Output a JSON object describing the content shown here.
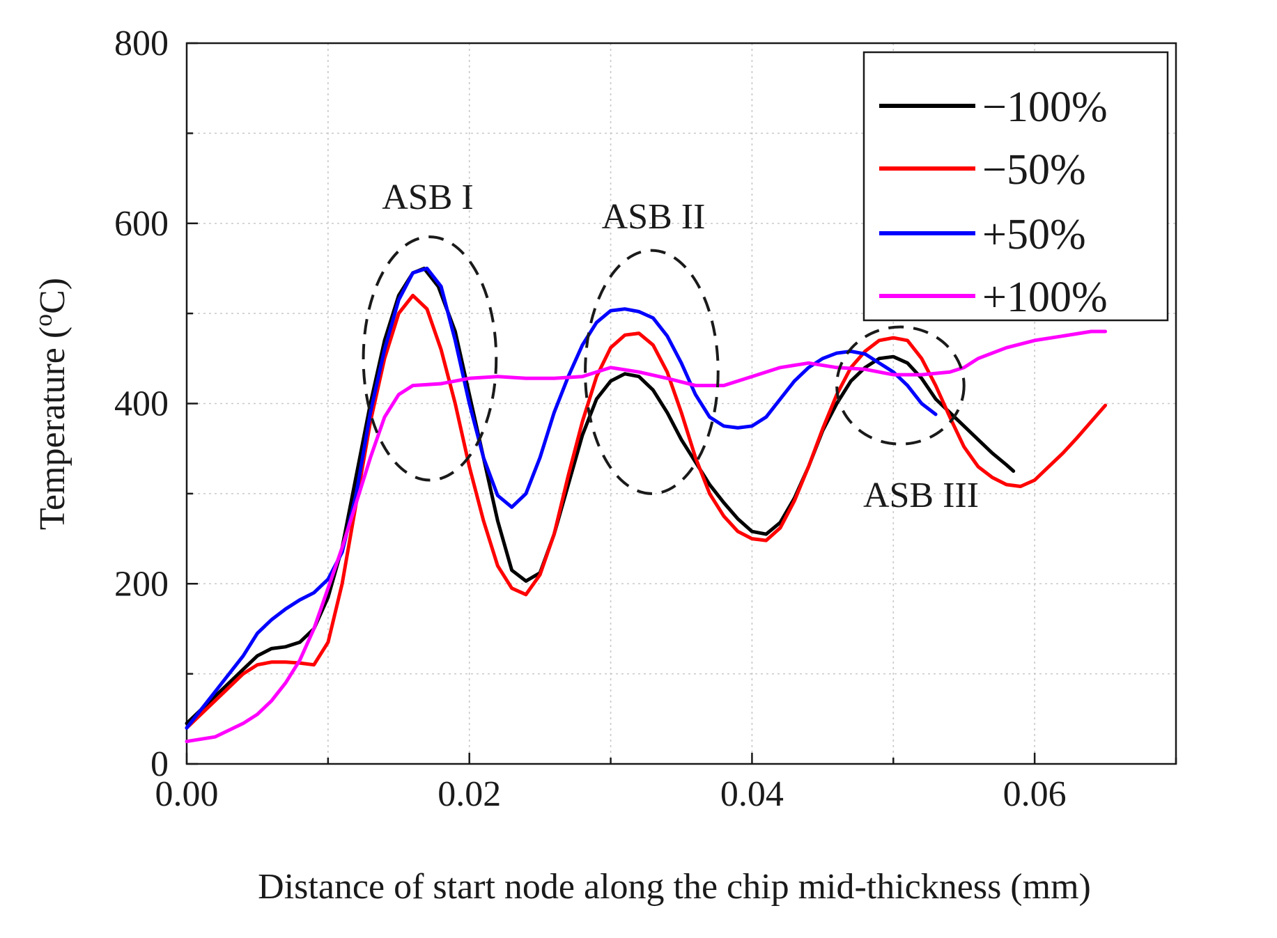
{
  "chart_data": {
    "type": "line",
    "title": "",
    "xlabel": "Distance of start node along the chip mid-thickness (mm)",
    "ylabel": "Temperature (",
    "ylabel_sup": "o",
    "ylabel_unit": "C)",
    "xlim": [
      0,
      0.07
    ],
    "ylim": [
      0,
      800
    ],
    "xticks": [
      0,
      0.02,
      0.04,
      0.06
    ],
    "xtick_labels": [
      "0.00",
      "0.02",
      "0.04",
      "0.06"
    ],
    "yticks": [
      0,
      200,
      400,
      600,
      800
    ],
    "ytick_labels": [
      "0",
      "200",
      "400",
      "600",
      "800"
    ],
    "grid": true,
    "legend_position": "top-right",
    "series": [
      {
        "name": "−100%",
        "color": "#000000",
        "points": [
          [
            0,
            45
          ],
          [
            0.002,
            75
          ],
          [
            0.004,
            105
          ],
          [
            0.005,
            120
          ],
          [
            0.006,
            128
          ],
          [
            0.007,
            130
          ],
          [
            0.008,
            135
          ],
          [
            0.009,
            150
          ],
          [
            0.01,
            185
          ],
          [
            0.011,
            240
          ],
          [
            0.012,
            320
          ],
          [
            0.013,
            400
          ],
          [
            0.014,
            470
          ],
          [
            0.015,
            520
          ],
          [
            0.016,
            545
          ],
          [
            0.0168,
            550
          ],
          [
            0.0178,
            530
          ],
          [
            0.019,
            480
          ],
          [
            0.02,
            410
          ],
          [
            0.021,
            340
          ],
          [
            0.022,
            270
          ],
          [
            0.023,
            215
          ],
          [
            0.024,
            203
          ],
          [
            0.025,
            212
          ],
          [
            0.026,
            255
          ],
          [
            0.027,
            310
          ],
          [
            0.028,
            365
          ],
          [
            0.029,
            405
          ],
          [
            0.03,
            425
          ],
          [
            0.031,
            433
          ],
          [
            0.032,
            430
          ],
          [
            0.033,
            415
          ],
          [
            0.034,
            390
          ],
          [
            0.035,
            360
          ],
          [
            0.036,
            335
          ],
          [
            0.037,
            310
          ],
          [
            0.038,
            290
          ],
          [
            0.039,
            272
          ],
          [
            0.04,
            258
          ],
          [
            0.041,
            255
          ],
          [
            0.042,
            268
          ],
          [
            0.043,
            295
          ],
          [
            0.044,
            330
          ],
          [
            0.045,
            370
          ],
          [
            0.046,
            400
          ],
          [
            0.047,
            425
          ],
          [
            0.048,
            440
          ],
          [
            0.049,
            450
          ],
          [
            0.05,
            452
          ],
          [
            0.051,
            445
          ],
          [
            0.052,
            428
          ],
          [
            0.053,
            405
          ],
          [
            0.054,
            390
          ],
          [
            0.055,
            375
          ],
          [
            0.056,
            360
          ],
          [
            0.057,
            345
          ],
          [
            0.058,
            332
          ],
          [
            0.0585,
            325
          ]
        ]
      },
      {
        "name": "−50%",
        "color": "#ff0000",
        "points": [
          [
            0,
            40
          ],
          [
            0.002,
            70
          ],
          [
            0.004,
            100
          ],
          [
            0.005,
            110
          ],
          [
            0.006,
            113
          ],
          [
            0.007,
            113
          ],
          [
            0.008,
            112
          ],
          [
            0.009,
            110
          ],
          [
            0.01,
            135
          ],
          [
            0.011,
            200
          ],
          [
            0.012,
            290
          ],
          [
            0.013,
            380
          ],
          [
            0.014,
            450
          ],
          [
            0.015,
            500
          ],
          [
            0.016,
            520
          ],
          [
            0.017,
            505
          ],
          [
            0.018,
            460
          ],
          [
            0.019,
            400
          ],
          [
            0.02,
            330
          ],
          [
            0.021,
            270
          ],
          [
            0.022,
            220
          ],
          [
            0.023,
            195
          ],
          [
            0.024,
            188
          ],
          [
            0.025,
            210
          ],
          [
            0.026,
            255
          ],
          [
            0.027,
            320
          ],
          [
            0.028,
            380
          ],
          [
            0.029,
            430
          ],
          [
            0.03,
            462
          ],
          [
            0.031,
            476
          ],
          [
            0.032,
            478
          ],
          [
            0.033,
            465
          ],
          [
            0.034,
            435
          ],
          [
            0.035,
            390
          ],
          [
            0.036,
            340
          ],
          [
            0.037,
            300
          ],
          [
            0.038,
            275
          ],
          [
            0.039,
            258
          ],
          [
            0.04,
            250
          ],
          [
            0.041,
            248
          ],
          [
            0.042,
            262
          ],
          [
            0.043,
            292
          ],
          [
            0.044,
            330
          ],
          [
            0.045,
            372
          ],
          [
            0.046,
            410
          ],
          [
            0.047,
            440
          ],
          [
            0.048,
            458
          ],
          [
            0.049,
            470
          ],
          [
            0.05,
            473
          ],
          [
            0.051,
            470
          ],
          [
            0.052,
            450
          ],
          [
            0.053,
            420
          ],
          [
            0.054,
            385
          ],
          [
            0.055,
            352
          ],
          [
            0.056,
            330
          ],
          [
            0.057,
            318
          ],
          [
            0.058,
            310
          ],
          [
            0.059,
            308
          ],
          [
            0.06,
            315
          ],
          [
            0.061,
            330
          ],
          [
            0.062,
            345
          ],
          [
            0.063,
            362
          ],
          [
            0.064,
            380
          ],
          [
            0.065,
            398
          ]
        ]
      },
      {
        "name": "+50%",
        "color": "#0000ff",
        "points": [
          [
            0,
            40
          ],
          [
            0.002,
            80
          ],
          [
            0.004,
            120
          ],
          [
            0.005,
            145
          ],
          [
            0.006,
            160
          ],
          [
            0.007,
            172
          ],
          [
            0.008,
            182
          ],
          [
            0.009,
            190
          ],
          [
            0.01,
            205
          ],
          [
            0.011,
            235
          ],
          [
            0.012,
            300
          ],
          [
            0.013,
            390
          ],
          [
            0.014,
            460
          ],
          [
            0.015,
            515
          ],
          [
            0.016,
            545
          ],
          [
            0.017,
            550
          ],
          [
            0.018,
            530
          ],
          [
            0.019,
            470
          ],
          [
            0.02,
            400
          ],
          [
            0.021,
            340
          ],
          [
            0.022,
            298
          ],
          [
            0.023,
            285
          ],
          [
            0.024,
            300
          ],
          [
            0.025,
            340
          ],
          [
            0.026,
            390
          ],
          [
            0.027,
            430
          ],
          [
            0.028,
            465
          ],
          [
            0.029,
            490
          ],
          [
            0.03,
            503
          ],
          [
            0.031,
            505
          ],
          [
            0.032,
            502
          ],
          [
            0.033,
            495
          ],
          [
            0.034,
            475
          ],
          [
            0.035,
            445
          ],
          [
            0.036,
            410
          ],
          [
            0.037,
            385
          ],
          [
            0.038,
            375
          ],
          [
            0.039,
            373
          ],
          [
            0.04,
            375
          ],
          [
            0.041,
            385
          ],
          [
            0.042,
            405
          ],
          [
            0.043,
            425
          ],
          [
            0.044,
            440
          ],
          [
            0.045,
            450
          ],
          [
            0.046,
            456
          ],
          [
            0.047,
            458
          ],
          [
            0.048,
            455
          ],
          [
            0.049,
            445
          ],
          [
            0.05,
            435
          ],
          [
            0.051,
            420
          ],
          [
            0.052,
            400
          ],
          [
            0.053,
            388
          ]
        ]
      },
      {
        "name": "+100%",
        "color": "#ff00ff",
        "points": [
          [
            0,
            25
          ],
          [
            0.002,
            30
          ],
          [
            0.004,
            45
          ],
          [
            0.005,
            55
          ],
          [
            0.006,
            70
          ],
          [
            0.007,
            90
          ],
          [
            0.008,
            115
          ],
          [
            0.009,
            150
          ],
          [
            0.01,
            195
          ],
          [
            0.011,
            240
          ],
          [
            0.012,
            290
          ],
          [
            0.013,
            340
          ],
          [
            0.014,
            385
          ],
          [
            0.015,
            410
          ],
          [
            0.016,
            420
          ],
          [
            0.018,
            422
          ],
          [
            0.02,
            428
          ],
          [
            0.022,
            430
          ],
          [
            0.024,
            428
          ],
          [
            0.026,
            428
          ],
          [
            0.028,
            430
          ],
          [
            0.03,
            440
          ],
          [
            0.032,
            435
          ],
          [
            0.034,
            428
          ],
          [
            0.036,
            420
          ],
          [
            0.038,
            420
          ],
          [
            0.04,
            430
          ],
          [
            0.042,
            440
          ],
          [
            0.044,
            445
          ],
          [
            0.046,
            440
          ],
          [
            0.048,
            438
          ],
          [
            0.05,
            432
          ],
          [
            0.052,
            432
          ],
          [
            0.054,
            435
          ],
          [
            0.055,
            440
          ],
          [
            0.056,
            450
          ],
          [
            0.058,
            462
          ],
          [
            0.06,
            470
          ],
          [
            0.062,
            475
          ],
          [
            0.064,
            480
          ],
          [
            0.065,
            480
          ]
        ]
      }
    ],
    "annotations": [
      {
        "text": "ASB I",
        "ellipse": {
          "cx": 0.0172,
          "cy": 450,
          "rx": 0.0047,
          "ry": 135
        }
      },
      {
        "text": "ASB II",
        "ellipse": {
          "cx": 0.0329,
          "cy": 435,
          "rx": 0.0047,
          "ry": 135
        }
      },
      {
        "text": "ASB III",
        "ellipse": {
          "cx": 0.0505,
          "cy": 420,
          "rx": 0.0045,
          "ry": 65
        }
      }
    ]
  }
}
